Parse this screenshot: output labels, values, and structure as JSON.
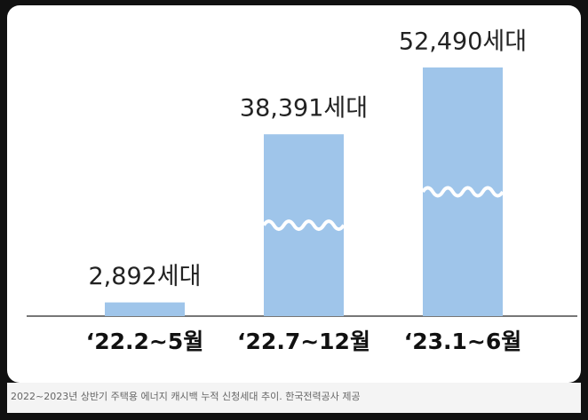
{
  "chart_data": {
    "type": "bar",
    "categories": [
      "‘22.2~5월",
      "‘22.7~12월",
      "‘23.1~6월"
    ],
    "values": [
      2892,
      38391,
      52490
    ],
    "value_labels": [
      "2,892세대",
      "38,391세대",
      "52,490세대"
    ],
    "color": "#9fc5ea",
    "caption": "2022~2023년 상반기 주택용 에너지 캐시백 누적 신청세대 추이. 한국전력공사 제공"
  }
}
